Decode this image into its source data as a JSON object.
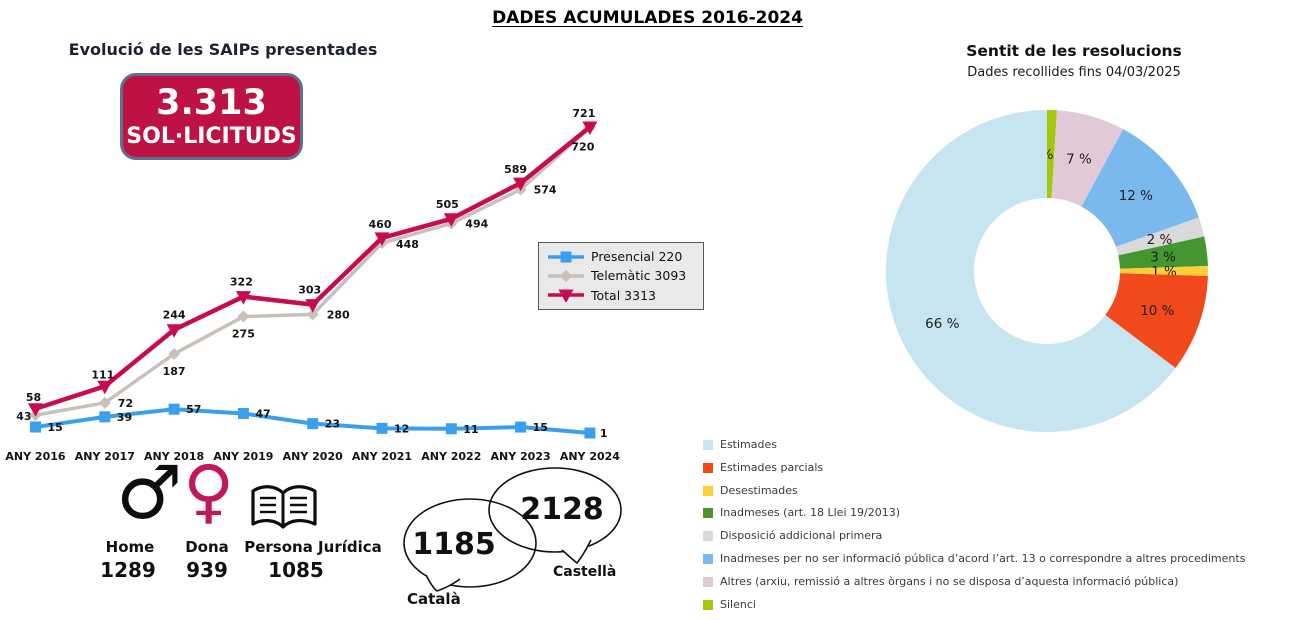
{
  "page": {
    "title": "DADES ACUMULADES 2016-2024"
  },
  "badge": {
    "number": "3.313",
    "label": "SOL·LICITUDS",
    "bg": "#be1244"
  },
  "chart_data": [
    {
      "type": "line",
      "title": "Evolució de les SAIPs presentades",
      "categories": [
        "ANY 2016",
        "ANY 2017",
        "ANY 2018",
        "ANY 2019",
        "ANY 2020",
        "ANY 2021",
        "ANY 2022",
        "ANY 2023",
        "ANY 2024"
      ],
      "series": [
        {
          "name": "Presencial 220",
          "color": "#3b9ff0",
          "marker": "square",
          "values": [
            15,
            39,
            57,
            47,
            23,
            12,
            11,
            15,
            1
          ]
        },
        {
          "name": "Telemàtic 3093",
          "color": "#c9c1b9",
          "marker": "diamond",
          "values": [
            43,
            72,
            187,
            275,
            280,
            448,
            494,
            574,
            720
          ]
        },
        {
          "name": "Total 3313",
          "color": "#c70b50",
          "marker": "triangle-down",
          "values": [
            58,
            111,
            244,
            322,
            303,
            460,
            505,
            589,
            721
          ]
        }
      ],
      "grid": false,
      "legend_position": "right"
    },
    {
      "type": "pie",
      "donut": true,
      "title": "Sentit de les resolucions",
      "subtitle": "Dades recollides fins 04/03/2025",
      "slices": [
        {
          "label": "Estimades",
          "pct": 66,
          "color": "#c6e5f0"
        },
        {
          "label": "Estimades parcials",
          "pct": 10,
          "color": "#f2491c"
        },
        {
          "label": "Desestimades",
          "pct": 1,
          "color": "#fccf3a"
        },
        {
          "label": "Inadmeses (art. 18 Llei 19/2013)",
          "pct": 3,
          "color": "#449630"
        },
        {
          "label": "Disposició addicional primera",
          "pct": 2,
          "color": "#d9d9d9"
        },
        {
          "label": "Inadmeses per no ser informació pública d’acord l’art. 13 o correspondre a altres procediments",
          "pct": 12,
          "color": "#79b9ee"
        },
        {
          "label": "Altres (arxiu, remissió a altres òrgans i no se disposa d’aquesta informació pública)",
          "pct": 7,
          "color": "#e2c9d7"
        },
        {
          "label": "Silenci",
          "pct": 1,
          "color": "#a3c70b"
        }
      ],
      "pct_suffix": " %"
    }
  ],
  "stats": {
    "items": [
      {
        "icon": "mars-icon",
        "label": "Home",
        "value": "1289"
      },
      {
        "icon": "venus-icon",
        "label": "Dona",
        "value": "939"
      },
      {
        "icon": "open-book-icon",
        "label": "Persona Jurídica",
        "value": "1085"
      }
    ],
    "languages": [
      {
        "label": "Català",
        "value": "1185"
      },
      {
        "label": "Castellà",
        "value": "2128"
      }
    ]
  },
  "colors": {
    "accent_crimson": "#be1244",
    "venus_pink": "#c2185b"
  }
}
